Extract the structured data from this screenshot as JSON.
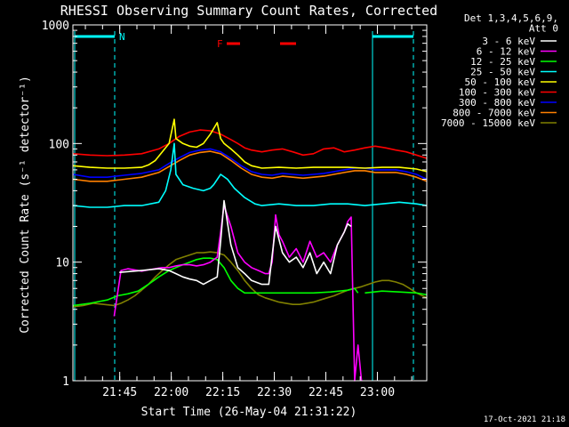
{
  "chart_data": {
    "type": "line",
    "title": "RHESSI Observing Summary Count Rates, Corrected",
    "xlabel": "Start Time (26-May-04 21:31:22)",
    "ylabel": "Corrected Count Rate (s⁻¹ detector⁻¹)",
    "yscale": "log",
    "ylim": [
      1,
      1000
    ],
    "xlim_minutes": [
      0,
      103
    ],
    "x_unit": "minutes after 21:31:22",
    "xticks": [
      {
        "label": "21:45",
        "minute": 13.63
      },
      {
        "label": "22:00",
        "minute": 28.63
      },
      {
        "label": "22:15",
        "minute": 43.63
      },
      {
        "label": "22:30",
        "minute": 58.63
      },
      {
        "label": "22:45",
        "minute": 73.63
      },
      {
        "label": "23:00",
        "minute": 88.63
      }
    ],
    "yticks": [
      {
        "label": "1",
        "value": 1
      },
      {
        "label": "10",
        "value": 10
      },
      {
        "label": "100",
        "value": 100
      },
      {
        "label": "1000",
        "value": 1000
      }
    ],
    "legend_header": [
      "Det 1,3,4,5,6,9,",
      "Att 0"
    ],
    "legend_position": "right",
    "series": [
      {
        "name": "3 - 6 keV",
        "color": "#ffffff",
        "x": [
          0,
          12,
          13.5,
          20,
          25,
          28,
          30,
          32,
          34,
          36,
          38,
          40,
          42,
          43,
          44,
          46,
          48,
          50,
          52,
          55,
          57,
          59,
          61,
          63,
          65,
          67,
          69,
          71,
          73,
          75,
          77,
          79,
          80,
          81,
          82,
          83,
          85,
          88,
          90,
          103
        ],
        "y": [
          null,
          null,
          8.2,
          8.5,
          8.8,
          8.5,
          8,
          7.5,
          7.2,
          7,
          6.5,
          7,
          7.5,
          15,
          33,
          14,
          9,
          8,
          7,
          6.5,
          6.5,
          20,
          12,
          10,
          11,
          9,
          12,
          8,
          10,
          8,
          14,
          18,
          21,
          20,
          null,
          null,
          null,
          null,
          null,
          null
        ]
      },
      {
        "name": "6 - 12 keV",
        "color": "#ff00ff",
        "x": [
          0,
          10,
          12,
          14,
          16,
          18,
          20,
          22,
          24,
          26,
          28,
          30,
          32,
          34,
          36,
          38,
          40,
          42,
          43,
          44,
          46,
          48,
          50,
          52,
          54,
          56,
          57,
          58,
          59,
          60,
          61,
          63,
          65,
          67,
          69,
          71,
          73,
          75,
          77,
          79,
          80,
          81,
          82,
          83,
          84,
          85,
          86
        ],
        "y": [
          null,
          null,
          3.5,
          8.5,
          8.8,
          8.6,
          8.4,
          8.6,
          8.8,
          9,
          9,
          9.3,
          9.5,
          9.5,
          9.3,
          9.5,
          10,
          11,
          18,
          30,
          20,
          12,
          10,
          9,
          8.5,
          8,
          8,
          10,
          25,
          17,
          15,
          11,
          13,
          10,
          15,
          11,
          12,
          10,
          14,
          18,
          22,
          24,
          1,
          2,
          1,
          null,
          null
        ]
      },
      {
        "name": "12 - 25 keV",
        "color": "#00ff00",
        "x": [
          0,
          5,
          10,
          13,
          16,
          19,
          22,
          25,
          28,
          30,
          32,
          34,
          36,
          38,
          40,
          42,
          44,
          46,
          48,
          50,
          55,
          60,
          65,
          70,
          75,
          80,
          82,
          83,
          84,
          85,
          90,
          95,
          100,
          103
        ],
        "y": [
          4.3,
          4.5,
          4.8,
          5.2,
          5.4,
          5.7,
          6.5,
          7.5,
          8.5,
          9,
          9.5,
          10,
          10.5,
          10.8,
          10.8,
          10.5,
          9,
          7,
          6,
          5.5,
          5.5,
          5.5,
          5.5,
          5.5,
          5.6,
          5.8,
          6,
          5.5,
          null,
          5.5,
          5.7,
          5.6,
          5.5,
          5.3
        ]
      },
      {
        "name": "25 - 50 keV",
        "color": "#00ffff",
        "x": [
          0,
          5,
          10,
          15,
          20,
          25,
          27,
          28.5,
          29.5,
          30,
          32,
          35,
          38,
          40,
          41,
          43,
          45,
          47,
          50,
          53,
          55,
          60,
          65,
          70,
          75,
          80,
          85,
          90,
          95,
          100,
          103
        ],
        "y": [
          30,
          29,
          29,
          30,
          30,
          32,
          40,
          60,
          100,
          55,
          45,
          42,
          40,
          42,
          45,
          55,
          50,
          42,
          35,
          31,
          30,
          31,
          30,
          30,
          31,
          31,
          30,
          31,
          32,
          31,
          30
        ]
      },
      {
        "name": "50 - 100 keV",
        "color": "#ffff00",
        "x": [
          0,
          5,
          10,
          15,
          20,
          22,
          24,
          26,
          28,
          29.5,
          30,
          32,
          34,
          36,
          38,
          40,
          42,
          43,
          44,
          46,
          48,
          50,
          52,
          55,
          60,
          65,
          70,
          75,
          80,
          85,
          90,
          95,
          100,
          103
        ],
        "y": [
          65,
          63,
          62,
          62,
          63,
          66,
          72,
          85,
          100,
          160,
          110,
          100,
          95,
          93,
          100,
          120,
          150,
          110,
          100,
          90,
          80,
          70,
          65,
          62,
          63,
          62,
          63,
          63,
          63,
          62,
          63,
          63,
          61,
          58
        ]
      },
      {
        "name": "100 - 300 keV",
        "color": "#ff0000",
        "x": [
          0,
          5,
          10,
          15,
          20,
          25,
          28,
          31,
          34,
          37,
          40,
          43,
          46,
          48,
          50,
          52,
          55,
          58,
          61,
          64,
          67,
          70,
          73,
          76,
          79,
          82,
          85,
          88,
          91,
          94,
          97,
          100,
          103
        ],
        "y": [
          82,
          80,
          79,
          80,
          82,
          90,
          100,
          115,
          125,
          130,
          128,
          120,
          108,
          100,
          92,
          88,
          85,
          88,
          90,
          85,
          80,
          82,
          90,
          92,
          85,
          88,
          92,
          95,
          92,
          88,
          85,
          80,
          75
        ]
      },
      {
        "name": "300 - 800 keV",
        "color": "#0000ff",
        "x": [
          0,
          5,
          10,
          15,
          20,
          25,
          28,
          31,
          34,
          37,
          40,
          43,
          46,
          49,
          52,
          55,
          58,
          61,
          64,
          67,
          70,
          73,
          76,
          79,
          82,
          85,
          88,
          91,
          94,
          97,
          100,
          103
        ],
        "y": [
          55,
          52,
          52,
          54,
          56,
          60,
          68,
          76,
          84,
          88,
          90,
          85,
          75,
          65,
          58,
          55,
          54,
          56,
          55,
          54,
          55,
          56,
          58,
          60,
          62,
          62,
          60,
          60,
          60,
          58,
          55,
          50
        ]
      },
      {
        "name": "800 - 7000 keV",
        "color": "#ff8000",
        "x": [
          0,
          5,
          10,
          15,
          20,
          25,
          28,
          31,
          34,
          37,
          40,
          43,
          46,
          49,
          52,
          55,
          58,
          61,
          64,
          67,
          70,
          73,
          76,
          79,
          82,
          85,
          88,
          91,
          94,
          97,
          100,
          103
        ],
        "y": [
          50,
          48,
          48,
          50,
          52,
          57,
          64,
          72,
          80,
          84,
          86,
          82,
          72,
          62,
          55,
          52,
          51,
          53,
          52,
          51,
          52,
          53,
          55,
          57,
          59,
          59,
          57,
          57,
          57,
          55,
          52,
          48
        ]
      },
      {
        "name": "7000 - 15000 keV",
        "color": "#808000",
        "x": [
          0,
          3,
          6,
          9,
          12,
          14,
          16,
          18,
          20,
          22,
          24,
          26,
          28,
          30,
          32,
          34,
          36,
          38,
          40,
          42,
          44,
          46,
          48,
          50,
          52,
          54,
          56,
          58,
          60,
          62,
          64,
          66,
          68,
          70,
          72,
          74,
          76,
          78,
          80,
          82,
          84,
          86,
          88,
          90,
          92,
          94,
          96,
          98,
          100,
          103
        ],
        "y": [
          4.2,
          4.3,
          4.5,
          4.4,
          4.3,
          4.5,
          4.8,
          5.2,
          5.8,
          6.5,
          7.5,
          8.5,
          9.5,
          10.5,
          11,
          11.5,
          12,
          12,
          12.2,
          12,
          11.5,
          10,
          8.5,
          7,
          6,
          5.3,
          5,
          4.8,
          4.6,
          4.5,
          4.4,
          4.4,
          4.5,
          4.6,
          4.8,
          5,
          5.2,
          5.5,
          5.8,
          6,
          6.2,
          6.5,
          6.8,
          7,
          7,
          6.8,
          6.5,
          6,
          5.5,
          5
        ]
      }
    ],
    "markers": [
      {
        "label": "N",
        "minute": 13.63,
        "color": "#00ffff"
      },
      {
        "label": "F",
        "color": "#ff0000"
      }
    ],
    "footer_date": "17-Oct-2021 21:18"
  }
}
